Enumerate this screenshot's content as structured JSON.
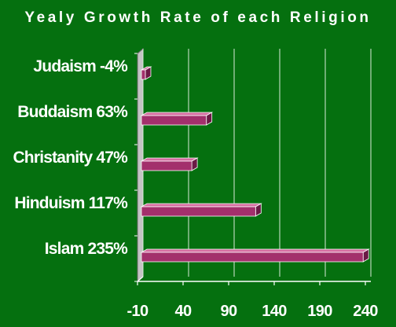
{
  "chart_data": {
    "type": "bar",
    "orientation": "horizontal",
    "title": "Yealy Growth Rate of each Religion",
    "categories": [
      "Judaism -4%",
      "Buddaism 63%",
      "Christanity 47%",
      "Hinduism 117%",
      "Islam 235%"
    ],
    "values": [
      -4,
      63,
      47,
      117,
      235
    ],
    "xlabel": "",
    "ylabel": "",
    "xlim": [
      -10,
      240
    ],
    "xticks": [
      "-10",
      "40",
      "90",
      "140",
      "190",
      "240"
    ],
    "grid": true,
    "legend": "none"
  },
  "colors": {
    "background": "#05700f",
    "bar_face": "#a3306c",
    "bar_top": "#d56ea1",
    "bar_side": "#6b1a45",
    "gridline": "#d9ead9",
    "wall_face": "#c4c4c4",
    "wall_side": "#8a8a8a",
    "text": "#ffffff"
  }
}
